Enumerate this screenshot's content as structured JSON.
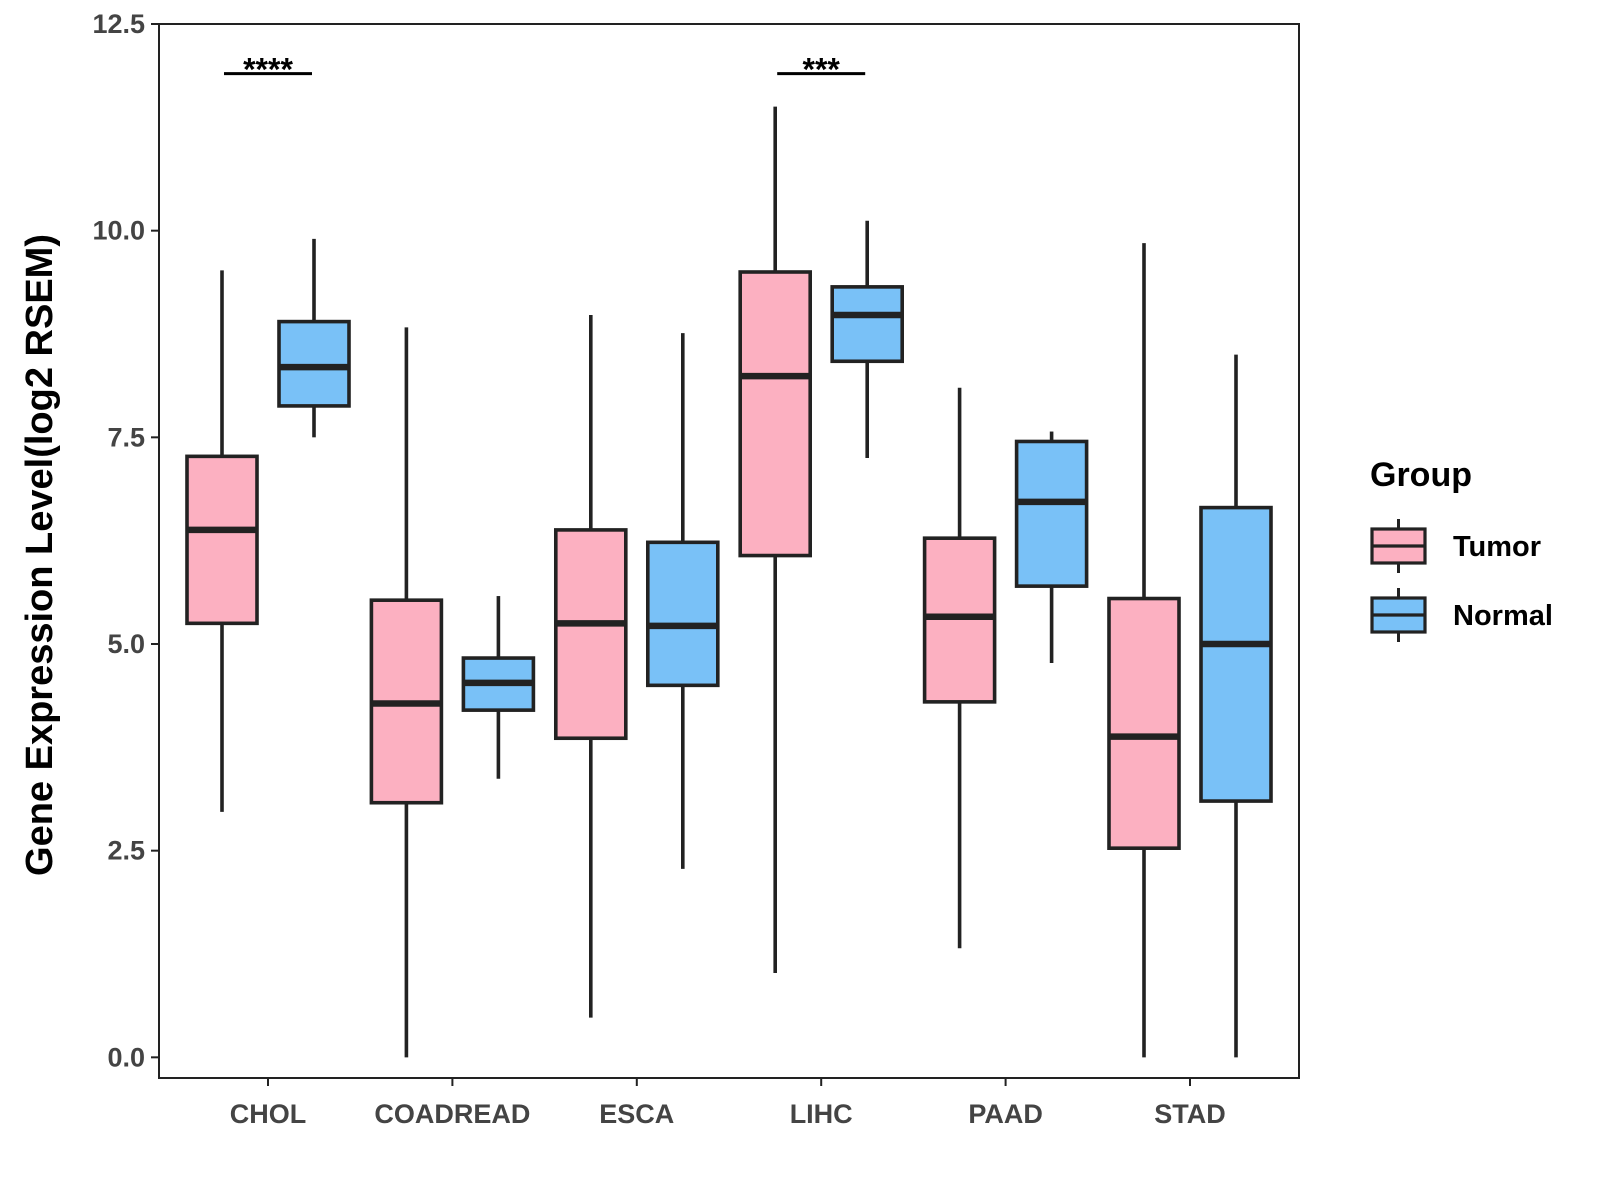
{
  "chart_data": {
    "type": "boxplot",
    "title": "",
    "xlabel": "",
    "ylabel": "Gene Expression Level(log2 RSEM)",
    "ylim": [
      -0.25,
      12.5
    ],
    "yticks": [
      0.0,
      2.5,
      5.0,
      7.5,
      10.0,
      12.5
    ],
    "ytick_labels": [
      "0.0",
      "2.5",
      "5.0",
      "7.5",
      "10.0",
      "12.5"
    ],
    "categories": [
      "CHOL",
      "COADREAD",
      "ESCA",
      "LIHC",
      "PAAD",
      "STAD"
    ],
    "legend": {
      "title": "Group",
      "position": "right",
      "entries": [
        {
          "name": "Tumor",
          "color": "#fcb0c1"
        },
        {
          "name": "Normal",
          "color": "#79c1f7"
        }
      ]
    },
    "series": [
      {
        "name": "Tumor",
        "color": "#fcb0c1",
        "boxes": [
          {
            "category": "CHOL",
            "min": 2.97,
            "q1": 5.25,
            "median": 6.38,
            "q3": 7.27,
            "max": 9.52
          },
          {
            "category": "COADREAD",
            "min": 0.0,
            "q1": 3.08,
            "median": 4.28,
            "q3": 5.53,
            "max": 8.83
          },
          {
            "category": "ESCA",
            "min": 0.48,
            "q1": 3.86,
            "median": 5.25,
            "q3": 6.38,
            "max": 8.98
          },
          {
            "category": "LIHC",
            "min": 1.02,
            "q1": 6.07,
            "median": 8.24,
            "q3": 9.5,
            "max": 11.5
          },
          {
            "category": "PAAD",
            "min": 1.32,
            "q1": 4.3,
            "median": 5.33,
            "q3": 6.28,
            "max": 8.1
          },
          {
            "category": "STAD",
            "min": 0.0,
            "q1": 2.53,
            "median": 3.88,
            "q3": 5.55,
            "max": 9.85
          }
        ]
      },
      {
        "name": "Normal",
        "color": "#79c1f7",
        "boxes": [
          {
            "category": "CHOL",
            "min": 7.5,
            "q1": 7.88,
            "median": 8.35,
            "q3": 8.9,
            "max": 9.9
          },
          {
            "category": "COADREAD",
            "min": 3.37,
            "q1": 4.2,
            "median": 4.53,
            "q3": 4.83,
            "max": 5.58
          },
          {
            "category": "ESCA",
            "min": 2.28,
            "q1": 4.5,
            "median": 5.22,
            "q3": 6.23,
            "max": 8.76
          },
          {
            "category": "LIHC",
            "min": 7.25,
            "q1": 8.42,
            "median": 8.98,
            "q3": 9.32,
            "max": 10.12
          },
          {
            "category": "PAAD",
            "min": 4.77,
            "q1": 5.7,
            "median": 6.72,
            "q3": 7.45,
            "max": 7.57
          },
          {
            "category": "STAD",
            "min": 0.0,
            "q1": 3.1,
            "median": 5.0,
            "q3": 6.65,
            "max": 8.5
          }
        ]
      }
    ],
    "annotations": [
      {
        "category": "CHOL",
        "label": "****",
        "y": 11.9
      },
      {
        "category": "LIHC",
        "label": "***",
        "y": 11.9
      }
    ]
  }
}
